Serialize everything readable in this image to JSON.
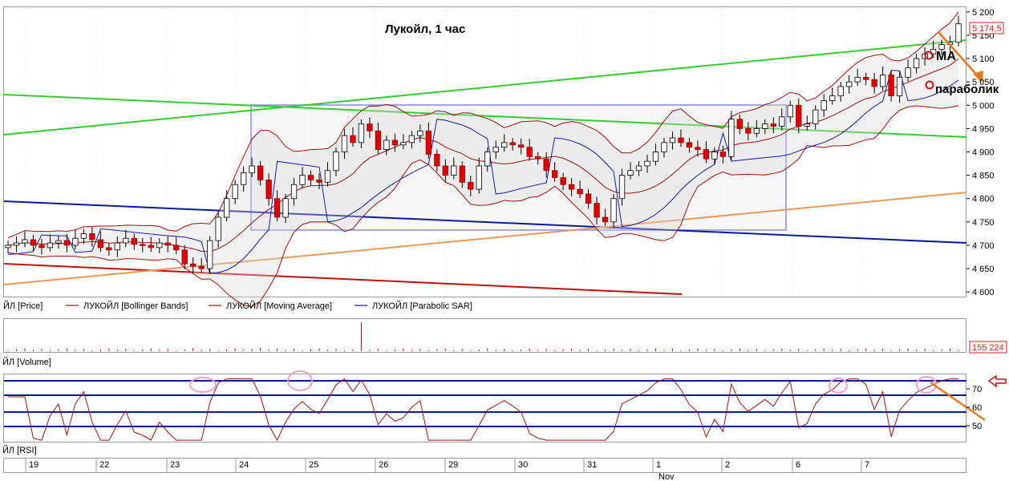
{
  "annotations": {
    "title": "Лукойл, 1 час",
    "ma": "МА",
    "parabolic": "параболик"
  },
  "price_panel": {
    "legend": [
      {
        "text": "ЙЛ [Price]",
        "color": "#000000"
      },
      {
        "text": "ЛУКОЙЛ [Bollinger Bands]",
        "color": "#a01010"
      },
      {
        "text": "ЛУКОЙЛ [Moving Average]",
        "color": "#a01010"
      },
      {
        "text": "ЛУКОЙЛ [Parabolic SAR]",
        "color": "#1a1aa0"
      }
    ],
    "last_price": "5 174,5",
    "y_ticks": [
      "5 200",
      "5 150",
      "5 100",
      "5 050",
      "5 000",
      "4 950",
      "4 900",
      "4 850",
      "4 800",
      "4 750",
      "4 700",
      "4 650",
      "4 600"
    ]
  },
  "volume_panel": {
    "legend": "ЙЛ [Volume]",
    "last_value": "155 224"
  },
  "rsi_panel": {
    "legend": "ЙЛ [RSI]",
    "y_ticks": [
      "70",
      "60",
      "50"
    ]
  },
  "x_axis": {
    "days": [
      "19",
      "22",
      "23",
      "24",
      "25",
      "26",
      "29",
      "30",
      "31",
      "1",
      "2",
      "6",
      "7"
    ],
    "month": "Nov"
  },
  "colors": {
    "up": "#ffffff",
    "down": "#e00000",
    "bollinger": "#a01010",
    "parabolic": "#1a1aa0",
    "green_line": "#33cc33",
    "blue_support": "#0a1aa0",
    "red_support": "#c01010",
    "orange_trend": "#e89a5a",
    "rect": "#8888ee",
    "annotation_orange": "#e87a20",
    "annotation_red": "#cc1111"
  },
  "chart_data": {
    "type": "candlestick",
    "interval": "1 hour",
    "ylim": [
      4590,
      5210
    ],
    "close_series": [
      4700,
      4705,
      4712,
      4700,
      4695,
      4705,
      4710,
      4700,
      4715,
      4725,
      4712,
      4695,
      4690,
      4705,
      4715,
      4702,
      4700,
      4695,
      4705,
      4700,
      4690,
      4660,
      4655,
      4650,
      4710,
      4760,
      4800,
      4830,
      4855,
      4870,
      4840,
      4800,
      4760,
      4800,
      4830,
      4850,
      4840,
      4835,
      4860,
      4900,
      4935,
      4920,
      4960,
      4945,
      4905,
      4925,
      4915,
      4920,
      4935,
      4945,
      4895,
      4870,
      4850,
      4870,
      4835,
      4820,
      4870,
      4900,
      4910,
      4920,
      4915,
      4910,
      4890,
      4885,
      4860,
      4845,
      4830,
      4820,
      4810,
      4790,
      4760,
      4750,
      4800,
      4850,
      4860,
      4870,
      4880,
      4900,
      4920,
      4930,
      4920,
      4910,
      4905,
      4885,
      4900,
      4890,
      4970,
      4950,
      4940,
      4950,
      4960,
      4955,
      4975,
      5000,
      4955,
      4960,
      4990,
      5010,
      5020,
      5040,
      5050,
      5060,
      5055,
      5040,
      5065,
      5020,
      5060,
      5080,
      5100,
      5110,
      5120,
      5130,
      5135,
      5174.5
    ]
  }
}
